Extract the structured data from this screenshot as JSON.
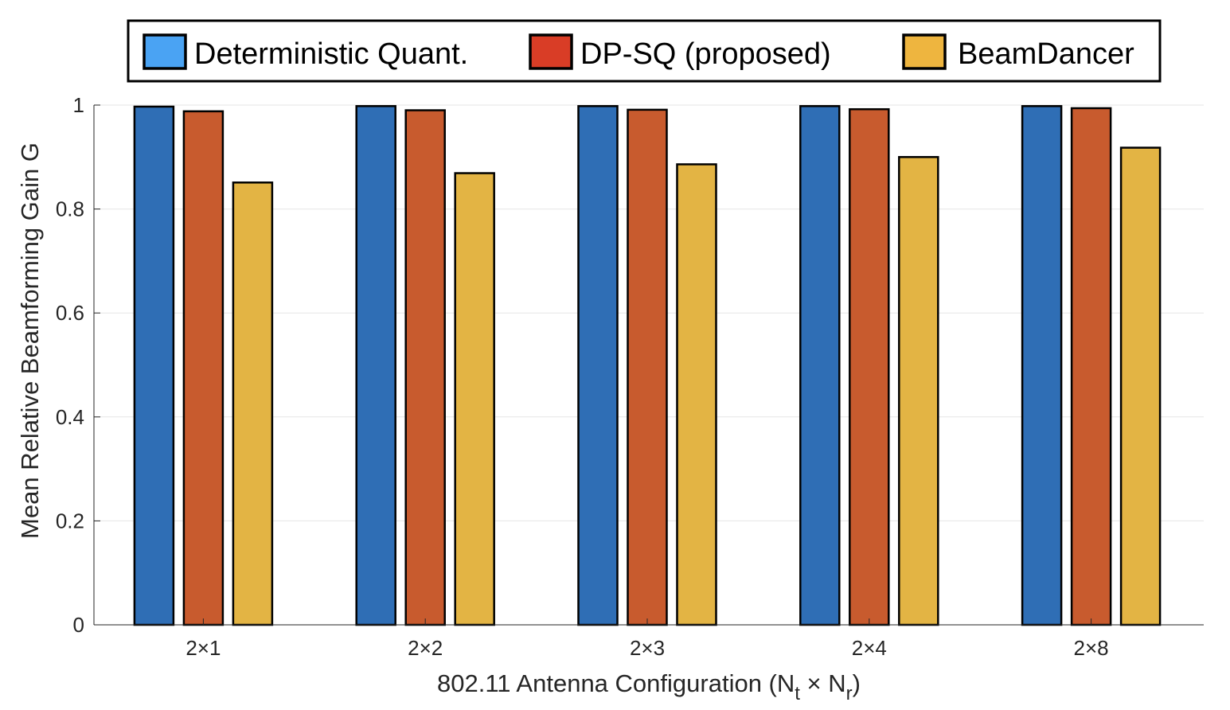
{
  "chart_data": {
    "type": "bar",
    "title": "",
    "xlabel": {
      "main": "802.11 Antenna Configuration (N",
      "sub1": "t",
      "mid": " × N",
      "sub2": "r",
      "end": ")"
    },
    "ylabel": "Mean Relative Beamforming Gain  G",
    "ylim": [
      0,
      1
    ],
    "yticks": [
      "0",
      "0.2",
      "0.4",
      "0.6",
      "0.8",
      "1"
    ],
    "categories": [
      "2×1",
      "2×2",
      "2×3",
      "2×4",
      "2×8"
    ],
    "series": [
      {
        "name": "Deterministic Quant.",
        "values": [
          0.997,
          0.998,
          0.998,
          0.998,
          0.998
        ],
        "color": "#2f6eb5",
        "legend_color": "#4aa3f3"
      },
      {
        "name": "DP-SQ (proposed)",
        "values": [
          0.988,
          0.99,
          0.991,
          0.992,
          0.994
        ],
        "color": "#c85b2e",
        "legend_color": "#d93d26"
      },
      {
        "name": "BeamDancer",
        "values": [
          0.851,
          0.869,
          0.886,
          0.9,
          0.918
        ],
        "color": "#e3b444",
        "legend_color": "#eeb53f"
      }
    ],
    "grid": true,
    "legend_position": "top"
  }
}
